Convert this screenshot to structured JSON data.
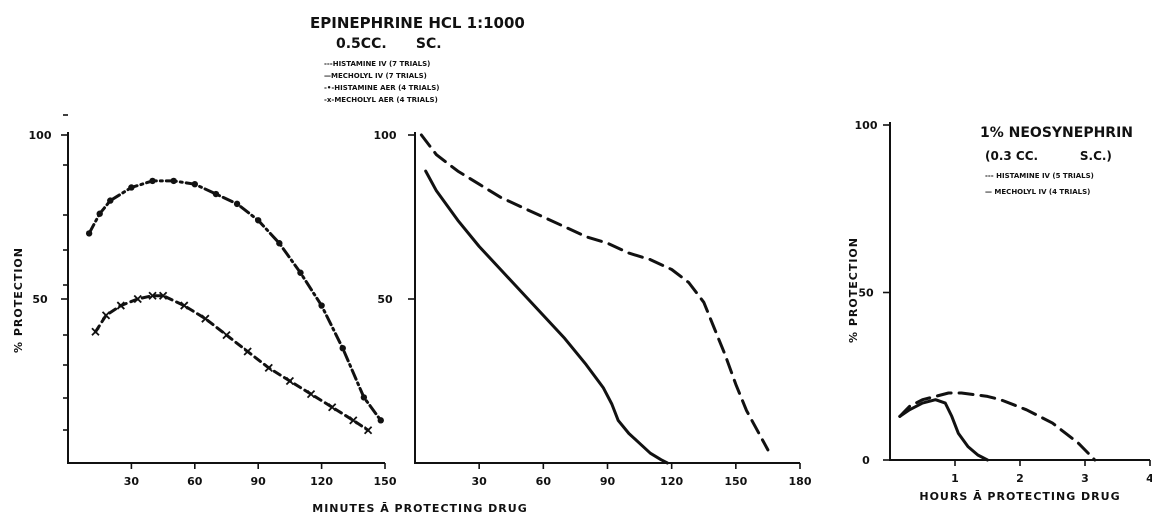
{
  "header": {
    "title_line1": "EPINEPHRINE HCL 1:1000",
    "title_line2": "0.5CC.      SC.",
    "legend": [
      {
        "label": "---HISTAMINE IV (7 TRIALS)"
      },
      {
        "label": "—MECHOLYL IV (7 TRIALS)"
      },
      {
        "label": "-•-HISTAMINE AER (4 TRIALS)"
      },
      {
        "label": "-x-MECHOLYL AER (4 TRIALS)"
      }
    ]
  },
  "x_label_shared": "MINUTES Ā PROTECTING DRUG",
  "right_legend": {
    "title_line1": "1% NEOSYNEPHRIN",
    "title_line2": "(0.3 CC.          S.C.)",
    "items": [
      {
        "label": "--- HISTAMINE IV (5 TRIALS)"
      },
      {
        "label": "— MECHOLYL IV (4 TRIALS)"
      }
    ]
  },
  "chart_data": [
    {
      "type": "line",
      "ylabel": "% PROTECTION",
      "y_ticks": [
        "100",
        "50"
      ],
      "x_ticks": [
        "30",
        "60",
        "90",
        "120",
        "150"
      ],
      "xlim": [
        0,
        150
      ],
      "ylim": [
        0,
        100
      ],
      "series": [
        {
          "name": "HISTAMINE AER (4 TRIALS)",
          "style": "dash-dot",
          "x": [
            10,
            15,
            20,
            30,
            40,
            50,
            60,
            70,
            80,
            90,
            100,
            110,
            120,
            130,
            140,
            148
          ],
          "y": [
            70,
            76,
            80,
            84,
            86,
            86,
            85,
            82,
            79,
            74,
            67,
            58,
            48,
            35,
            20,
            13
          ]
        },
        {
          "name": "MECHOLYL AER (4 TRIALS)",
          "style": "x-marked",
          "x": [
            13,
            18,
            25,
            33,
            40,
            45,
            55,
            65,
            75,
            85,
            95,
            105,
            115,
            125,
            135,
            142
          ],
          "y": [
            40,
            45,
            48,
            50,
            51,
            51,
            48,
            44,
            39,
            34,
            29,
            25,
            21,
            17,
            13,
            10
          ]
        }
      ]
    },
    {
      "type": "line",
      "y_ticks": [
        "100",
        "50"
      ],
      "x_ticks": [
        "30",
        "60",
        "90",
        "120",
        "150",
        "180"
      ],
      "xlim": [
        0,
        180
      ],
      "ylim": [
        0,
        100
      ],
      "series": [
        {
          "name": "HISTAMINE IV (7 TRIALS)",
          "style": "dashed",
          "x": [
            3,
            10,
            20,
            30,
            40,
            50,
            60,
            70,
            80,
            90,
            100,
            110,
            120,
            128,
            135,
            140,
            145,
            150,
            155,
            160,
            165
          ],
          "y": [
            100,
            94,
            89,
            85,
            81,
            78,
            75,
            72,
            69,
            67,
            64,
            62,
            59,
            55,
            49,
            41,
            33,
            24,
            16,
            10,
            4
          ]
        },
        {
          "name": "MECHOLYL IV (7 TRIALS)",
          "style": "solid",
          "x": [
            5,
            10,
            20,
            30,
            40,
            50,
            60,
            70,
            80,
            88,
            92,
            95,
            100,
            105,
            110,
            115,
            118
          ],
          "y": [
            89,
            83,
            74,
            66,
            59,
            52,
            45,
            38,
            30,
            23,
            18,
            13,
            9,
            6,
            3,
            1,
            0
          ]
        }
      ]
    },
    {
      "type": "line",
      "ylabel": "% PROTECTION",
      "xlabel": "HOURS Ā PROTECTING DRUG",
      "y_ticks": [
        "100",
        "50",
        "0"
      ],
      "x_ticks": [
        "1",
        "2",
        "3",
        "4"
      ],
      "xlim": [
        0,
        4
      ],
      "ylim": [
        0,
        100
      ],
      "series": [
        {
          "name": "HISTAMINE IV (5 TRIALS)",
          "style": "dashed",
          "x": [
            0.15,
            0.3,
            0.5,
            0.7,
            0.9,
            1.1,
            1.3,
            1.5,
            1.7,
            1.9,
            2.1,
            2.3,
            2.5,
            2.7,
            2.9,
            3.05,
            3.15
          ],
          "y": [
            13,
            16,
            18,
            19,
            20,
            20,
            19.5,
            19,
            18,
            16.5,
            15,
            13,
            11,
            8,
            5,
            2,
            0
          ]
        },
        {
          "name": "MECHOLYL IV (4 TRIALS)",
          "style": "solid",
          "x": [
            0.15,
            0.3,
            0.5,
            0.7,
            0.85,
            0.95,
            1.05,
            1.2,
            1.35,
            1.5
          ],
          "y": [
            13,
            15,
            17,
            18,
            17,
            13,
            8,
            4,
            1.5,
            0
          ]
        }
      ]
    }
  ]
}
